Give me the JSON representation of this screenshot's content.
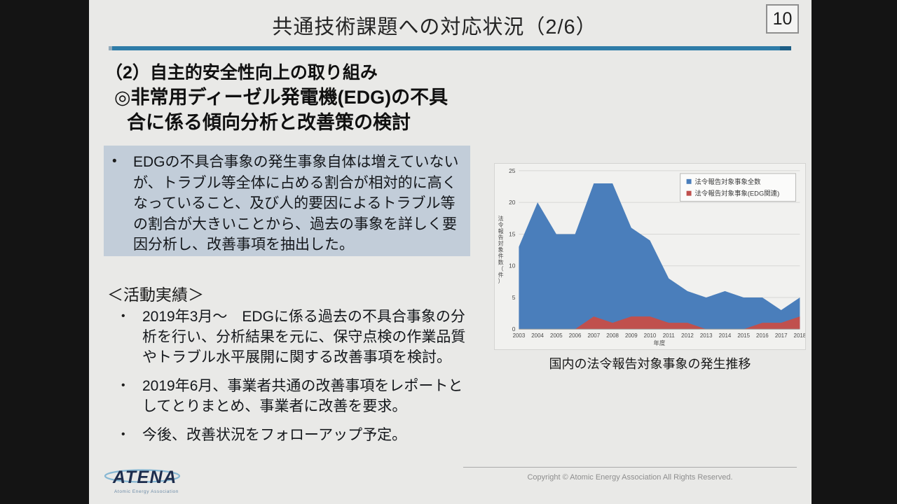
{
  "slide": {
    "page_number": "10",
    "title": "共通技術課題への対応状況（2/6）",
    "section_heading": "（2）自主的安全性向上の取り組み",
    "topic_heading": {
      "line1": "◎非常用ディーゼル発電機(EDG)の不具",
      "line2": "合に係る傾向分析と改善策の検討"
    },
    "highlight": {
      "bullet": "•",
      "text": "EDGの不具合事象の発生事象自体は増えていないが、トラブル等全体に占める割合が相対的に高くなっていること、及び人的要因によるトラブル等の割合が大きいことから、過去の事象を詳しく要因分析し、改善事項を抽出した。"
    },
    "activities_heading": "＜活動実績＞",
    "activities": [
      {
        "bullet": "•",
        "text": "2019年3月～　EDGに係る過去の不具合事象の分析を行い、分析結果を元に、保守点検の作業品質やトラブル水平展開に関する改善事項を検討。"
      },
      {
        "bullet": "•",
        "text": "2019年6月、事業者共通の改善事項をレポートとしてとりまとめ、事業者に改善を要求。"
      },
      {
        "bullet": "•",
        "text": "今後、改善状況をフォローアップ予定。"
      }
    ],
    "chart_caption": "国内の法令報告対象事象の発生推移",
    "footer": {
      "logo_text": "ATENA",
      "logo_subtext": "Atomic Energy Association",
      "copyright": "Copyright © Atomic Energy Association All Rights Reserved."
    }
  },
  "colors": {
    "accent_rule": "#2e7ca8",
    "accent_rule_end": "#1d5e86",
    "highlight_box": "#c2cdd9",
    "series_total": "#4a7ebb",
    "series_edg": "#c0504d",
    "slide_bg": "#e9e9e7",
    "letterbox_bg": "#141414"
  },
  "chart_data": {
    "type": "area",
    "title": "",
    "x": [
      2003,
      2004,
      2005,
      2006,
      2007,
      2008,
      2009,
      2010,
      2011,
      2012,
      2013,
      2014,
      2015,
      2016,
      2017,
      2018
    ],
    "series": [
      {
        "name": "法令報告対象事象全数",
        "color": "#4a7ebb",
        "values": [
          13,
          20,
          15,
          15,
          23,
          23,
          16,
          14,
          8,
          6,
          5,
          6,
          5,
          5,
          3,
          5
        ]
      },
      {
        "name": "法令報告対象事象(EDG関連)",
        "color": "#c0504d",
        "values": [
          0,
          0,
          0,
          0,
          2,
          1,
          2,
          2,
          1,
          1,
          0,
          0,
          0,
          1,
          1,
          2
        ]
      }
    ],
    "xlabel": "年度",
    "ylabel": "法令報告対象件数（件）",
    "ylim": [
      0,
      25
    ],
    "yticks": [
      0,
      5,
      10,
      15,
      20,
      25
    ],
    "grid": true,
    "legend_position": "top-right",
    "overlap": "overlaid"
  }
}
